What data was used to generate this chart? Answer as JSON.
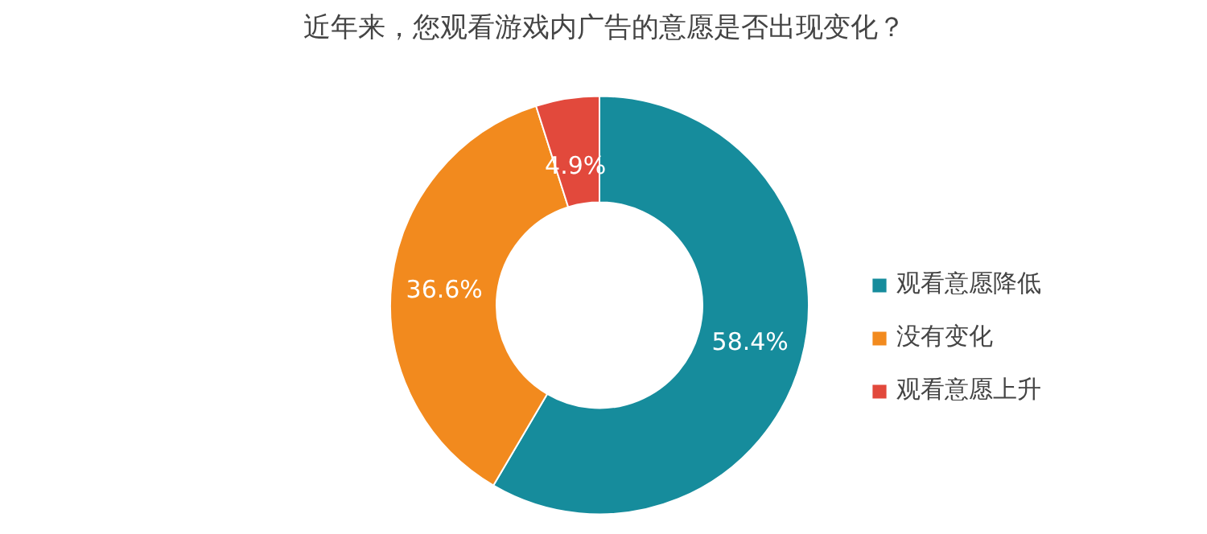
{
  "chart_data": {
    "type": "donut",
    "title": "近年来，您观看游戏内广告的意愿是否出现变化？",
    "categories": [
      "观看意愿降低",
      "没有变化",
      "观看意愿上升"
    ],
    "values": [
      58.4,
      36.6,
      4.9
    ],
    "colors": [
      "#168c9c",
      "#f28a1e",
      "#e2493c"
    ],
    "value_labels": [
      "58.4%",
      "36.6%",
      "4.9%"
    ],
    "legend": "right"
  }
}
